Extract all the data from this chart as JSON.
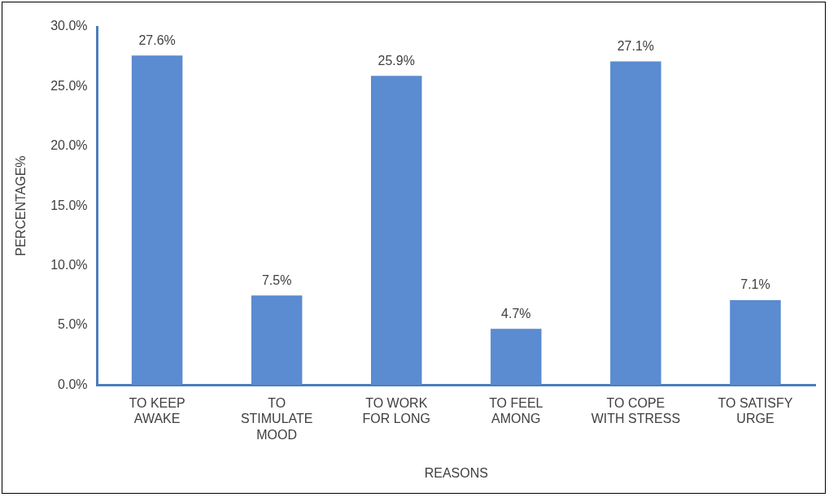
{
  "chart_data": {
    "type": "bar",
    "xlabel": "REASONS",
    "ylabel": "PERCENTAGE%",
    "categories": [
      "TO KEEP AWAKE",
      "TO STIMULATE MOOD",
      "TO WORK FOR LONG",
      "TO FEEL AMONG",
      "TO COPE WITH STRESS",
      "TO SATISFY URGE"
    ],
    "values": [
      27.6,
      7.5,
      25.9,
      4.7,
      27.1,
      7.1
    ],
    "value_labels": [
      "27.6%",
      "7.5%",
      "25.9%",
      "4.7%",
      "27.1%",
      "7.1%"
    ],
    "color": "#5b8bd0",
    "ylim": [
      0,
      30
    ],
    "yticks": [
      {
        "value": 0,
        "label": "0.0%"
      },
      {
        "value": 5,
        "label": "5.0%"
      },
      {
        "value": 10,
        "label": "10.0%"
      },
      {
        "value": 15,
        "label": "15.0%"
      },
      {
        "value": 20,
        "label": "20.0%"
      },
      {
        "value": 25,
        "label": "25.0%"
      },
      {
        "value": 30,
        "label": "30.0%"
      }
    ],
    "grid": false,
    "legend": false
  }
}
